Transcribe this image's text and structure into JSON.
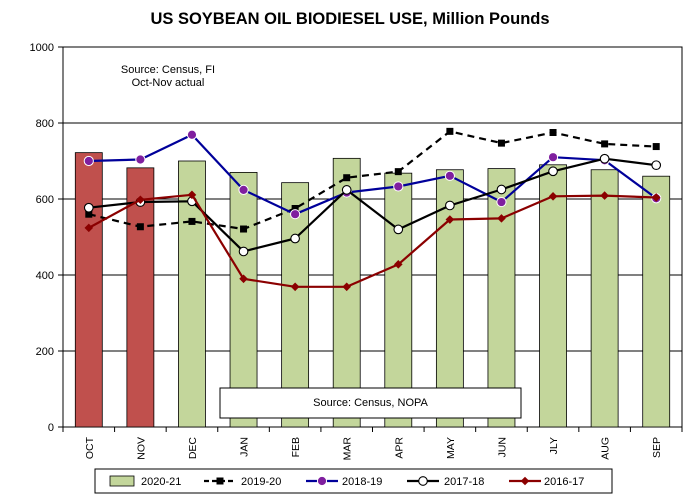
{
  "chart_data": {
    "type": "bar+line",
    "title": "US SOYBEAN OIL BIODIESEL USE, Million Pounds",
    "categories": [
      "OCT",
      "NOV",
      "DEC",
      "JAN",
      "FEB",
      "MAR",
      "APR",
      "MAY",
      "JUN",
      "JLY",
      "AUG",
      "SEP"
    ],
    "ylim": [
      0,
      1000
    ],
    "yticks": [
      0,
      200,
      400,
      600,
      800,
      1000
    ],
    "xlabel": "",
    "ylabel": "",
    "grid": "horizontal",
    "annotations": {
      "source_top_line1": "Source: Census, FI",
      "source_top_line2": "Oct-Nov actual",
      "source_bottom": "Source: Census, NOPA"
    },
    "bars": {
      "name": "2020-21",
      "values": [
        722,
        682,
        700,
        670,
        643,
        707,
        668,
        677,
        680,
        690,
        677,
        660
      ],
      "actual_count": 2,
      "actual_color": "#c0504d",
      "projected_color": "#c3d69b"
    },
    "series": [
      {
        "name": "2019-20",
        "color": "#000000",
        "dashed": true,
        "marker": "square",
        "values": [
          560,
          527,
          541,
          521,
          575,
          656,
          672,
          778,
          747,
          775,
          745,
          738
        ]
      },
      {
        "name": "2018-19",
        "color": "#00009a",
        "dashed": false,
        "marker": "circle-filled",
        "marker_color": "#7f1f9f",
        "values": [
          700,
          704,
          769,
          624,
          560,
          617,
          633,
          661,
          592,
          710,
          702,
          602
        ]
      },
      {
        "name": "2017-18",
        "color": "#000000",
        "dashed": false,
        "marker": "circle-open",
        "values": [
          577,
          592,
          594,
          462,
          496,
          624,
          520,
          583,
          625,
          673,
          706,
          689
        ]
      },
      {
        "name": "2016-17",
        "color": "#8b0000",
        "dashed": false,
        "marker": "diamond",
        "values": [
          524,
          598,
          611,
          390,
          369,
          369,
          428,
          546,
          549,
          607,
          609,
          604
        ]
      }
    ]
  }
}
